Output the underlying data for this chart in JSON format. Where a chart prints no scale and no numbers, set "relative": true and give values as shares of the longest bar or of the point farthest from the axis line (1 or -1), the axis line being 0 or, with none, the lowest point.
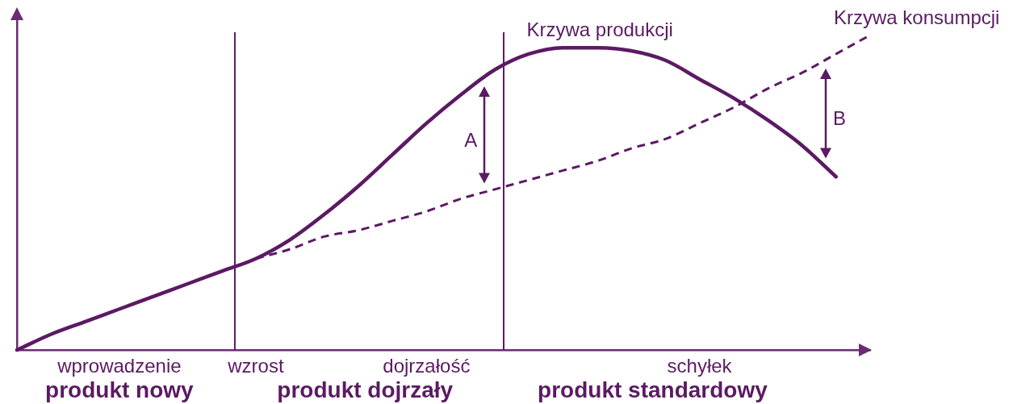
{
  "chart_data": {
    "type": "line",
    "relative": true,
    "categories": [
      null,
      null,
      null,
      "wprowadzenie",
      null,
      null,
      null,
      "wzrost",
      null,
      null,
      null,
      null,
      "dojrzałość",
      null,
      null,
      null,
      null,
      null,
      null,
      null,
      "schyłek",
      null,
      null,
      null,
      null,
      null
    ],
    "series": [
      {
        "name": "Krzywa produkcji",
        "color": "#5b1a63",
        "line_style": "solid",
        "values": [
          0,
          0.05,
          0.09,
          0.13,
          0.17,
          0.21,
          0.25,
          0.29,
          0.35,
          0.43,
          0.52,
          0.62,
          0.72,
          0.81,
          0.89,
          0.94,
          0.96,
          0.96,
          0.95,
          0.92,
          0.86,
          0.8,
          0.73,
          0.65,
          0.55,
          null
        ]
      },
      {
        "name": "Krzywa konsumpcji",
        "color": "#5b1a63",
        "line_style": "dashed",
        "values": [
          null,
          null,
          null,
          null,
          null,
          null,
          null,
          0.29,
          0.32,
          0.36,
          0.38,
          0.41,
          0.44,
          0.48,
          0.51,
          0.54,
          0.57,
          0.6,
          0.64,
          0.67,
          0.72,
          0.77,
          0.83,
          0.88,
          0.94,
          1
        ]
      }
    ],
    "annotations": [
      "produkt nowy",
      "produkt dojrzały",
      "produkt standardowy",
      "A",
      "B"
    ],
    "legend": false,
    "grid": false,
    "marker": "none",
    "tick_labels": "x"
  }
}
